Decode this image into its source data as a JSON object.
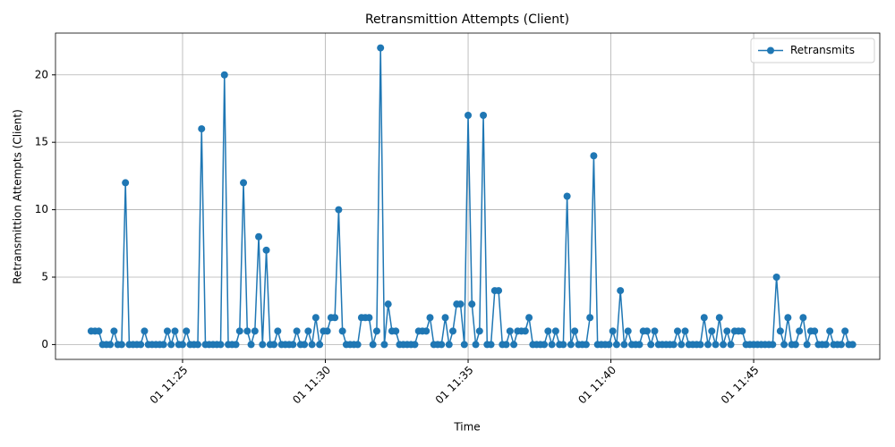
{
  "chart_data": {
    "type": "line",
    "title": "Retransmittion Attempts (Client)",
    "xlabel": "Time",
    "ylabel": "Retransmittion Attempts (Client)",
    "x": [
      "01 11:21:48",
      "01 11:21:56",
      "01 11:22:04",
      "01 11:22:12",
      "01 11:22:20",
      "01 11:22:28",
      "01 11:22:36",
      "01 11:22:44",
      "01 11:22:52",
      "01 11:23:00",
      "01 11:23:08",
      "01 11:23:16",
      "01 11:23:24",
      "01 11:23:32",
      "01 11:23:40",
      "01 11:23:48",
      "01 11:23:56",
      "01 11:24:04",
      "01 11:24:12",
      "01 11:24:20",
      "01 11:24:28",
      "01 11:24:36",
      "01 11:24:44",
      "01 11:24:52",
      "01 11:25:00",
      "01 11:25:08",
      "01 11:25:16",
      "01 11:25:24",
      "01 11:25:32",
      "01 11:25:40",
      "01 11:25:48",
      "01 11:25:56",
      "01 11:26:04",
      "01 11:26:12",
      "01 11:26:20",
      "01 11:26:28",
      "01 11:26:36",
      "01 11:26:44",
      "01 11:26:52",
      "01 11:27:00",
      "01 11:27:08",
      "01 11:27:16",
      "01 11:27:24",
      "01 11:27:32",
      "01 11:27:40",
      "01 11:27:48",
      "01 11:27:56",
      "01 11:28:04",
      "01 11:28:12",
      "01 11:28:20",
      "01 11:28:28",
      "01 11:28:36",
      "01 11:28:44",
      "01 11:28:52",
      "01 11:29:00",
      "01 11:29:08",
      "01 11:29:16",
      "01 11:29:24",
      "01 11:29:32",
      "01 11:29:40",
      "01 11:29:48",
      "01 11:29:56",
      "01 11:30:04",
      "01 11:30:12",
      "01 11:30:20",
      "01 11:30:28",
      "01 11:30:36",
      "01 11:30:44",
      "01 11:30:52",
      "01 11:31:00",
      "01 11:31:08",
      "01 11:31:16",
      "01 11:31:24",
      "01 11:31:32",
      "01 11:31:40",
      "01 11:31:48",
      "01 11:31:56",
      "01 11:32:04",
      "01 11:32:12",
      "01 11:32:20",
      "01 11:32:28",
      "01 11:32:36",
      "01 11:32:44",
      "01 11:32:52",
      "01 11:33:00",
      "01 11:33:08",
      "01 11:33:16",
      "01 11:33:24",
      "01 11:33:32",
      "01 11:33:40",
      "01 11:33:48",
      "01 11:33:56",
      "01 11:34:04",
      "01 11:34:12",
      "01 11:34:20",
      "01 11:34:28",
      "01 11:34:36",
      "01 11:34:44",
      "01 11:34:52",
      "01 11:35:00",
      "01 11:35:08",
      "01 11:35:16",
      "01 11:35:24",
      "01 11:35:32",
      "01 11:35:40",
      "01 11:35:48",
      "01 11:35:56",
      "01 11:36:04",
      "01 11:36:12",
      "01 11:36:20",
      "01 11:36:28",
      "01 11:36:36",
      "01 11:36:44",
      "01 11:36:52",
      "01 11:37:00",
      "01 11:37:08",
      "01 11:37:16",
      "01 11:37:24",
      "01 11:37:32",
      "01 11:37:40",
      "01 11:37:48",
      "01 11:37:56",
      "01 11:38:04",
      "01 11:38:12",
      "01 11:38:20",
      "01 11:38:28",
      "01 11:38:36",
      "01 11:38:44",
      "01 11:38:52",
      "01 11:39:00",
      "01 11:39:08",
      "01 11:39:16",
      "01 11:39:24",
      "01 11:39:32",
      "01 11:39:40",
      "01 11:39:48",
      "01 11:39:56",
      "01 11:40:04",
      "01 11:40:12",
      "01 11:40:20",
      "01 11:40:28",
      "01 11:40:36",
      "01 11:40:44",
      "01 11:40:52",
      "01 11:41:00",
      "01 11:41:08",
      "01 11:41:16",
      "01 11:41:24",
      "01 11:41:32",
      "01 11:41:40",
      "01 11:41:48",
      "01 11:41:56",
      "01 11:42:04",
      "01 11:42:12",
      "01 11:42:20",
      "01 11:42:28",
      "01 11:42:36",
      "01 11:42:44",
      "01 11:42:52",
      "01 11:43:00",
      "01 11:43:08",
      "01 11:43:16",
      "01 11:43:24",
      "01 11:43:32",
      "01 11:43:40",
      "01 11:43:48",
      "01 11:43:56",
      "01 11:44:04",
      "01 11:44:12",
      "01 11:44:20",
      "01 11:44:28",
      "01 11:44:36",
      "01 11:44:44",
      "01 11:44:52",
      "01 11:45:00",
      "01 11:45:08",
      "01 11:45:16",
      "01 11:45:24",
      "01 11:45:32",
      "01 11:45:40",
      "01 11:45:48",
      "01 11:45:56",
      "01 11:46:04",
      "01 11:46:12",
      "01 11:46:20",
      "01 11:46:28",
      "01 11:46:36",
      "01 11:46:44",
      "01 11:46:52",
      "01 11:47:00",
      "01 11:47:08",
      "01 11:47:16",
      "01 11:47:24",
      "01 11:47:32",
      "01 11:47:40",
      "01 11:47:48",
      "01 11:47:56",
      "01 11:48:04",
      "01 11:48:12",
      "01 11:48:20",
      "01 11:48:28"
    ],
    "series": [
      {
        "name": "Retransmits",
        "color": "#1f77b4",
        "values": [
          1,
          1,
          1,
          0,
          0,
          0,
          1,
          0,
          0,
          12,
          0,
          0,
          0,
          0,
          1,
          0,
          0,
          0,
          0,
          0,
          1,
          0,
          1,
          0,
          0,
          1,
          0,
          0,
          0,
          16,
          0,
          0,
          0,
          0,
          0,
          20,
          0,
          0,
          0,
          1,
          12,
          1,
          0,
          1,
          8,
          0,
          7,
          0,
          0,
          1,
          0,
          0,
          0,
          0,
          1,
          0,
          0,
          1,
          0,
          2,
          0,
          1,
          1,
          2,
          2,
          10,
          1,
          0,
          0,
          0,
          0,
          2,
          2,
          2,
          0,
          1,
          22,
          0,
          3,
          1,
          1,
          0,
          0,
          0,
          0,
          0,
          1,
          1,
          1,
          2,
          0,
          0,
          0,
          2,
          0,
          1,
          3,
          3,
          0,
          17,
          3,
          0,
          1,
          17,
          0,
          0,
          4,
          4,
          0,
          0,
          1,
          0,
          1,
          1,
          1,
          2,
          0,
          0,
          0,
          0,
          1,
          0,
          1,
          0,
          0,
          11,
          0,
          1,
          0,
          0,
          0,
          2,
          14,
          0,
          0,
          0,
          0,
          1,
          0,
          4,
          0,
          1,
          0,
          0,
          0,
          1,
          1,
          0,
          1,
          0,
          0,
          0,
          0,
          0,
          1,
          0,
          1,
          0,
          0,
          0,
          0,
          2,
          0,
          1,
          0,
          2,
          0,
          1,
          0,
          1,
          1,
          1,
          0,
          0,
          0,
          0,
          0,
          0,
          0,
          0,
          5,
          1,
          0,
          2,
          0,
          0,
          1,
          2,
          0,
          1,
          1,
          0,
          0,
          0,
          1,
          0,
          0,
          0,
          1,
          0,
          0
        ]
      }
    ],
    "xlim": [
      "01 11:20:33",
      "01 11:49:25"
    ],
    "xticks": [
      "01 11:25",
      "01 11:30",
      "01 11:35",
      "01 11:40",
      "01 11:45"
    ],
    "ylim": [
      -1.1,
      23.1
    ],
    "yticks": [
      0,
      5,
      10,
      15,
      20
    ],
    "grid": true,
    "legend": "upper right"
  }
}
